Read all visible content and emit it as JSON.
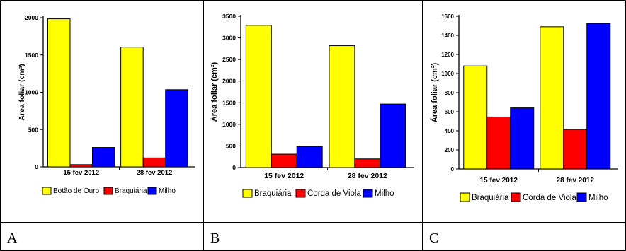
{
  "panels": [
    {
      "label": "A",
      "chart_data": {
        "type": "bar",
        "ylabel": "Área foliar (cm²)",
        "xlabel": "",
        "ylim": [
          0,
          2000
        ],
        "yticks": [
          0,
          500,
          1000,
          1500,
          2000
        ],
        "categories": [
          "15 fev 2012",
          "28 fev 2012"
        ],
        "legend_position": "bottom",
        "series": [
          {
            "name": "Botão de Ouro",
            "color": "#ffff00",
            "values": [
              1985,
              1605
            ]
          },
          {
            "name": "Braquiária",
            "color": "#ff0000",
            "values": [
              30,
              120
            ]
          },
          {
            "name": "Milho",
            "color": "#0000ff",
            "values": [
              260,
              1035
            ]
          }
        ]
      }
    },
    {
      "label": "B",
      "chart_data": {
        "type": "bar",
        "ylabel": "Área foliar (cm²)",
        "xlabel": "",
        "ylim": [
          0,
          3500
        ],
        "yticks": [
          0,
          500,
          1000,
          1500,
          2000,
          2500,
          3000,
          3500
        ],
        "categories": [
          "15 fev 2012",
          "28 fev 2012"
        ],
        "legend_position": "bottom",
        "series": [
          {
            "name": "Braquiária",
            "color": "#ffff00",
            "values": [
              3290,
              2820
            ]
          },
          {
            "name": "Corda de Viola",
            "color": "#ff0000",
            "values": [
              310,
              200
            ]
          },
          {
            "name": "Milho",
            "color": "#0000ff",
            "values": [
              490,
              1470
            ]
          }
        ]
      }
    },
    {
      "label": "C",
      "chart_data": {
        "type": "bar",
        "ylabel": "Área foliar (cm²)",
        "xlabel": "",
        "ylim": [
          0,
          1600
        ],
        "yticks": [
          0,
          200,
          400,
          600,
          800,
          1000,
          1200,
          1400,
          1600
        ],
        "categories": [
          "15 fev 2012",
          "28 fev 2012"
        ],
        "legend_position": "bottom",
        "series": [
          {
            "name": "Braquiária",
            "color": "#ffff00",
            "values": [
              1080,
              1490
            ]
          },
          {
            "name": "Corda de Viola",
            "color": "#ff0000",
            "values": [
              545,
              415
            ]
          },
          {
            "name": "Milho",
            "color": "#0000ff",
            "values": [
              640,
              1525
            ]
          }
        ]
      }
    }
  ]
}
